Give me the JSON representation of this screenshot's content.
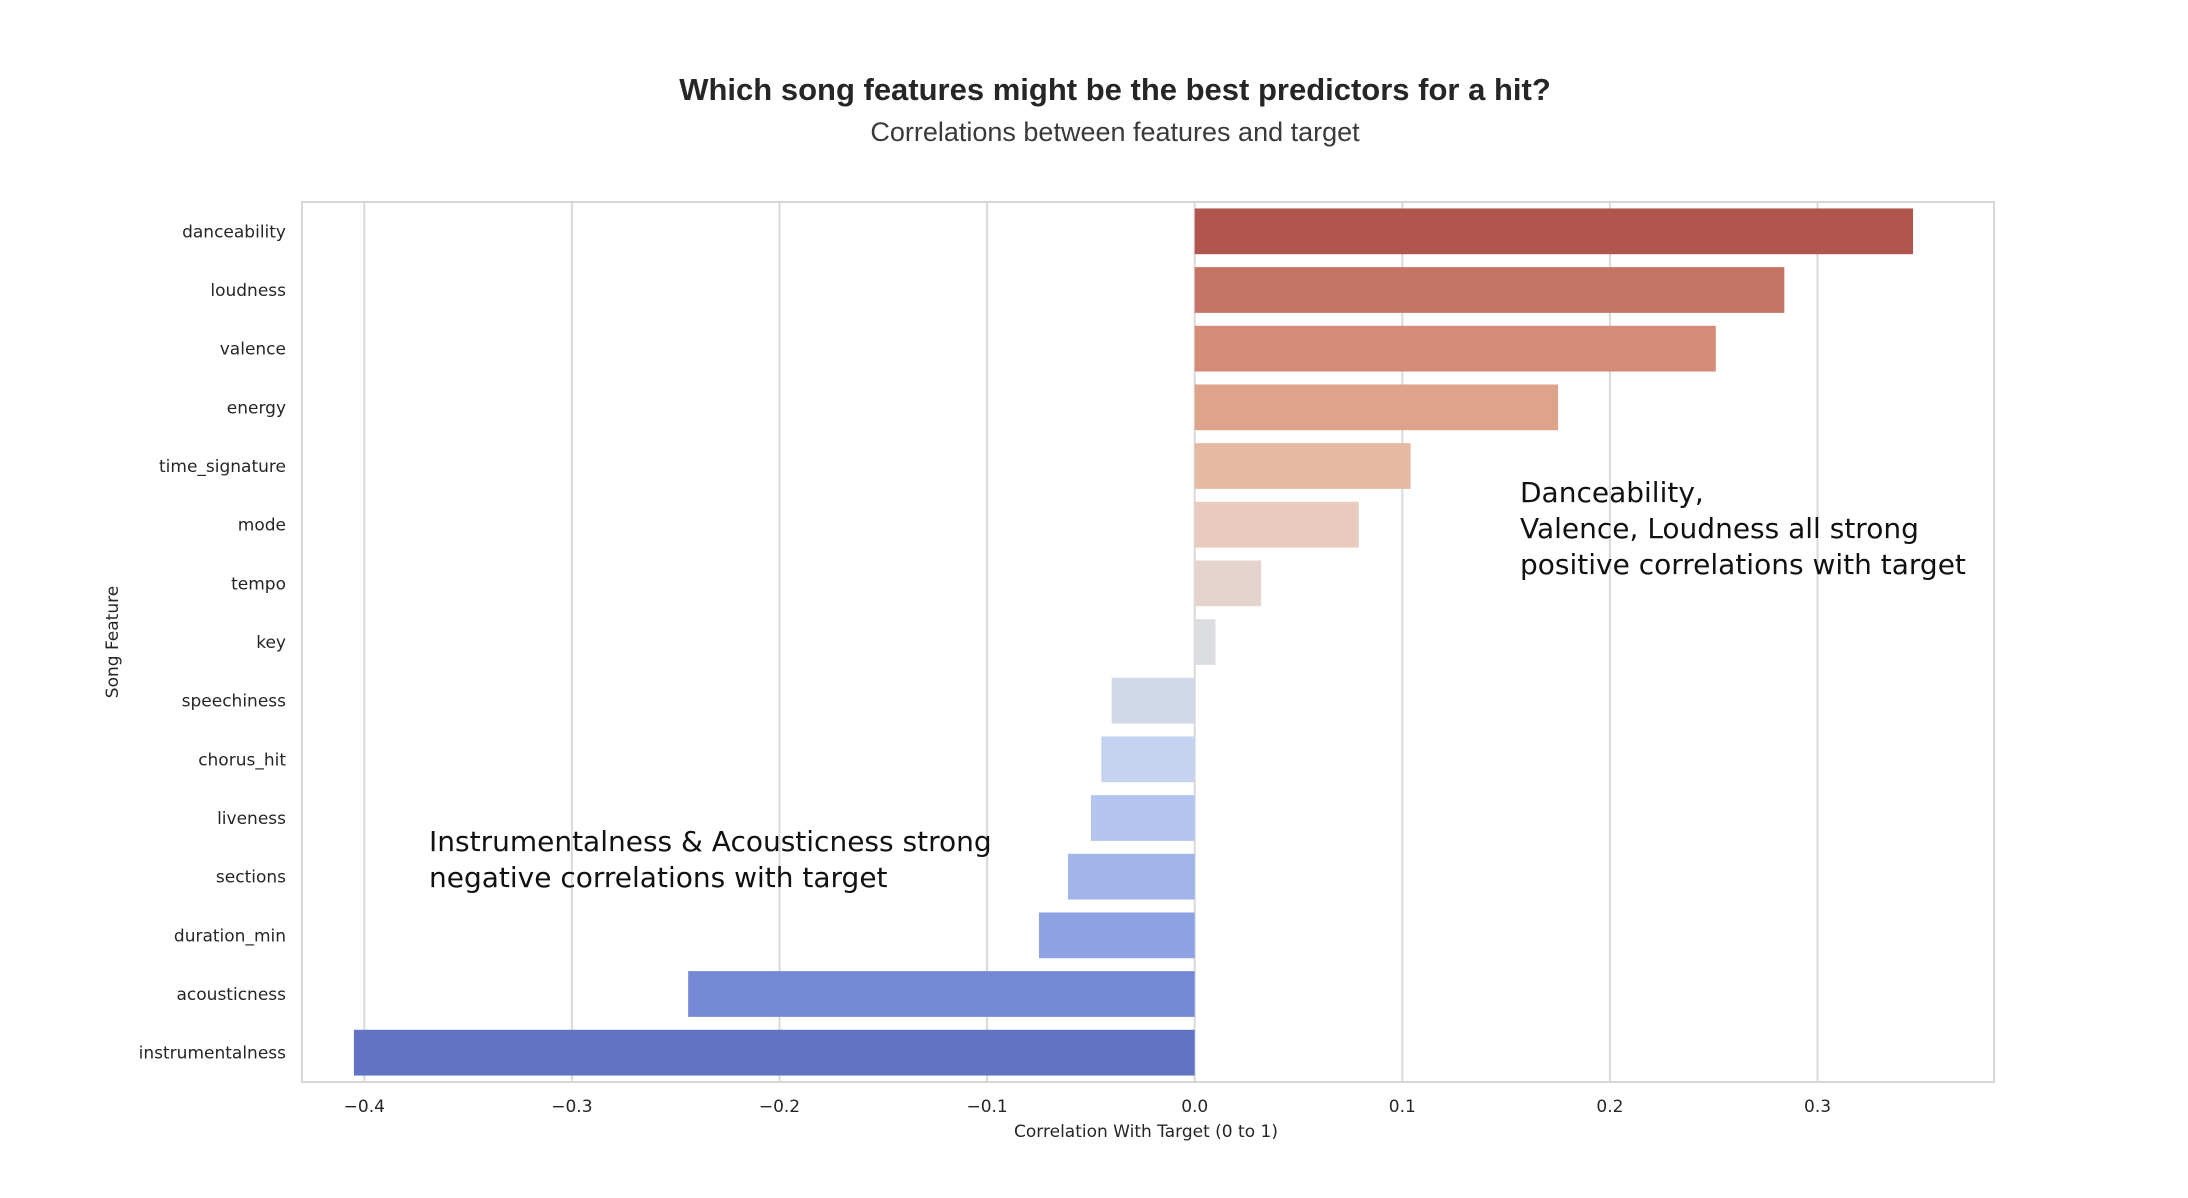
{
  "chart_data": {
    "type": "bar",
    "orientation": "horizontal",
    "title": "Which song features might be the best predictors for a hit?",
    "subtitle": "Correlations between features and target",
    "xlabel": "Correlation With Target (0 to 1)",
    "ylabel": "Song Feature",
    "xlim": [
      -0.43,
      0.385
    ],
    "xticks": [
      -0.4,
      -0.3,
      -0.2,
      -0.1,
      0.0,
      0.1,
      0.2,
      0.3
    ],
    "xtick_labels": [
      "−0.4",
      "−0.3",
      "−0.2",
      "−0.1",
      "0.0",
      "0.1",
      "0.2",
      "0.3"
    ],
    "grid": "vertical",
    "palette": "coolwarm",
    "categories": [
      "danceability",
      "loudness",
      "valence",
      "energy",
      "time_signature",
      "mode",
      "tempo",
      "key",
      "speechiness",
      "chorus_hit",
      "liveness",
      "sections",
      "duration_min",
      "acousticness",
      "instrumentalness"
    ],
    "values": [
      0.346,
      0.284,
      0.251,
      0.175,
      0.104,
      0.079,
      0.032,
      0.01,
      -0.04,
      -0.045,
      -0.05,
      -0.061,
      -0.075,
      -0.244,
      -0.405
    ],
    "colors": [
      "#b0564f",
      "#c47364",
      "#d48c79",
      "#dea48b",
      "#e6b9a2",
      "#e8cbbd",
      "#e4d4cd",
      "#dcdde0",
      "#d1d9e8",
      "#c5d3f0",
      "#b3c5f0",
      "#a0b4ea",
      "#8ea1e2",
      "#7689d6",
      "#6373c4"
    ],
    "annotations": [
      {
        "lines": [
          "Danceability,",
          "Valence, Loudness all strong",
          "positive correlations with target"
        ]
      },
      {
        "lines": [
          "Instrumentalness & Acousticness strong",
          "negative correlations with target"
        ]
      }
    ]
  }
}
